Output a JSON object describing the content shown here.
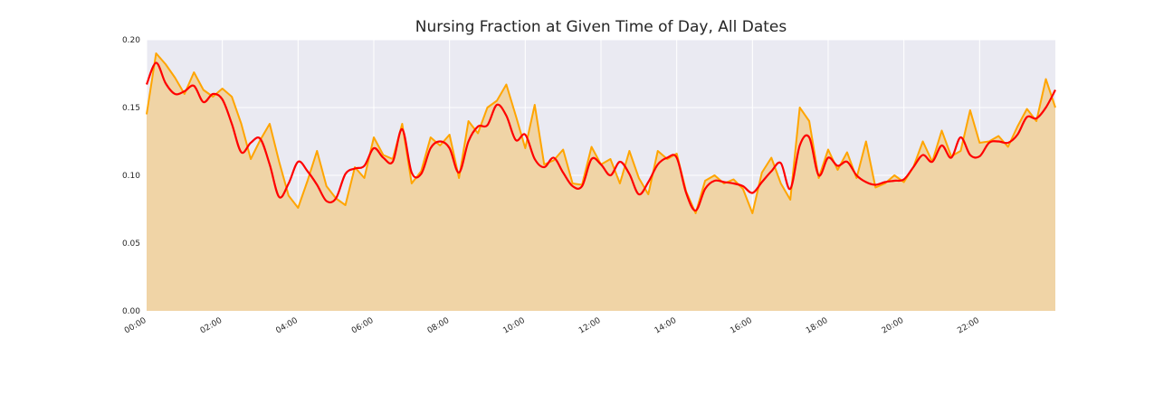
{
  "chart_data": {
    "type": "area",
    "title": "Nursing Fraction at Given Time of Day, All Dates",
    "xlabel": "",
    "ylabel": "",
    "xlim": [
      0,
      24
    ],
    "ylim": [
      0,
      0.2
    ],
    "x_ticks": [
      "00:00",
      "02:00",
      "04:00",
      "06:00",
      "08:00",
      "10:00",
      "12:00",
      "14:00",
      "16:00",
      "18:00",
      "20:00",
      "22:00"
    ],
    "y_ticks": [
      "0.00",
      "0.05",
      "0.10",
      "0.15",
      "0.20"
    ],
    "grid": true,
    "legend": "none",
    "colors": {
      "background": "#EAEAF2",
      "grid": "#FFFFFF",
      "raw_line": "#FFA500",
      "fill": "#F0D4A6",
      "smooth_line": "#FF0000"
    },
    "series": [
      {
        "role": "raw",
        "x": [
          0,
          0.25,
          0.5,
          0.75,
          1.0,
          1.25,
          1.5,
          1.75,
          2.0,
          2.25,
          2.5,
          2.75,
          3.0,
          3.25,
          3.5,
          3.75,
          4.0,
          4.25,
          4.5,
          4.75,
          5.0,
          5.25,
          5.5,
          5.75,
          6.0,
          6.25,
          6.5,
          6.75,
          7.0,
          7.25,
          7.5,
          7.75,
          8.0,
          8.25,
          8.5,
          8.75,
          9.0,
          9.25,
          9.5,
          9.75,
          10.0,
          10.25,
          10.5,
          10.75,
          11.0,
          11.25,
          11.5,
          11.75,
          12.0,
          12.25,
          12.5,
          12.75,
          13.0,
          13.25,
          13.5,
          13.75,
          14.0,
          14.25,
          14.5,
          14.75,
          15.0,
          15.25,
          15.5,
          15.75,
          16.0,
          16.25,
          16.5,
          16.75,
          17.0,
          17.25,
          17.5,
          17.75,
          18.0,
          18.25,
          18.5,
          18.75,
          19.0,
          19.25,
          19.5,
          19.75,
          20.0,
          20.25,
          20.5,
          20.75,
          21.0,
          21.25,
          21.5,
          21.75,
          22.0,
          22.25,
          22.5,
          22.75,
          23.0,
          23.25,
          23.5,
          23.75,
          24.0
        ],
        "y": [
          0.145,
          0.19,
          0.182,
          0.172,
          0.16,
          0.176,
          0.163,
          0.158,
          0.164,
          0.158,
          0.138,
          0.112,
          0.126,
          0.138,
          0.11,
          0.085,
          0.076,
          0.096,
          0.118,
          0.092,
          0.083,
          0.078,
          0.106,
          0.098,
          0.128,
          0.115,
          0.112,
          0.138,
          0.094,
          0.103,
          0.128,
          0.122,
          0.13,
          0.098,
          0.14,
          0.131,
          0.15,
          0.155,
          0.167,
          0.144,
          0.12,
          0.152,
          0.108,
          0.111,
          0.119,
          0.094,
          0.093,
          0.121,
          0.108,
          0.112,
          0.094,
          0.118,
          0.098,
          0.086,
          0.118,
          0.112,
          0.116,
          0.088,
          0.072,
          0.096,
          0.1,
          0.094,
          0.097,
          0.09,
          0.072,
          0.102,
          0.113,
          0.094,
          0.082,
          0.15,
          0.14,
          0.098,
          0.119,
          0.104,
          0.117,
          0.098,
          0.125,
          0.091,
          0.094,
          0.1,
          0.095,
          0.106,
          0.125,
          0.11,
          0.133,
          0.114,
          0.118,
          0.148,
          0.124,
          0.125,
          0.129,
          0.121,
          0.136,
          0.149,
          0.14,
          0.171,
          0.15
        ]
      },
      {
        "role": "smoothed",
        "x": [
          0,
          0.25,
          0.5,
          0.75,
          1.0,
          1.25,
          1.5,
          1.75,
          2.0,
          2.25,
          2.5,
          2.75,
          3.0,
          3.25,
          3.5,
          3.75,
          4.0,
          4.25,
          4.5,
          4.75,
          5.0,
          5.25,
          5.5,
          5.75,
          6.0,
          6.25,
          6.5,
          6.75,
          7.0,
          7.25,
          7.5,
          7.75,
          8.0,
          8.25,
          8.5,
          8.75,
          9.0,
          9.25,
          9.5,
          9.75,
          10.0,
          10.25,
          10.5,
          10.75,
          11.0,
          11.25,
          11.5,
          11.75,
          12.0,
          12.25,
          12.5,
          12.75,
          13.0,
          13.25,
          13.5,
          13.75,
          14.0,
          14.25,
          14.5,
          14.75,
          15.0,
          15.25,
          15.5,
          15.75,
          16.0,
          16.25,
          16.5,
          16.75,
          17.0,
          17.25,
          17.5,
          17.75,
          18.0,
          18.25,
          18.5,
          18.75,
          19.0,
          19.25,
          19.5,
          19.75,
          20.0,
          20.25,
          20.5,
          20.75,
          21.0,
          21.25,
          21.5,
          21.75,
          22.0,
          22.25,
          22.5,
          22.75,
          23.0,
          23.25,
          23.5,
          23.75,
          24.0
        ],
        "y": [
          0.167,
          0.183,
          0.168,
          0.16,
          0.162,
          0.166,
          0.154,
          0.16,
          0.156,
          0.138,
          0.117,
          0.124,
          0.127,
          0.108,
          0.084,
          0.094,
          0.11,
          0.103,
          0.093,
          0.081,
          0.083,
          0.101,
          0.105,
          0.107,
          0.12,
          0.113,
          0.11,
          0.134,
          0.102,
          0.101,
          0.12,
          0.125,
          0.12,
          0.102,
          0.125,
          0.136,
          0.137,
          0.152,
          0.144,
          0.126,
          0.13,
          0.112,
          0.106,
          0.113,
          0.102,
          0.092,
          0.092,
          0.112,
          0.108,
          0.1,
          0.11,
          0.101,
          0.086,
          0.095,
          0.108,
          0.113,
          0.113,
          0.087,
          0.074,
          0.09,
          0.096,
          0.095,
          0.094,
          0.092,
          0.087,
          0.095,
          0.103,
          0.109,
          0.09,
          0.122,
          0.128,
          0.1,
          0.113,
          0.107,
          0.11,
          0.1,
          0.095,
          0.093,
          0.095,
          0.096,
          0.097,
          0.106,
          0.115,
          0.11,
          0.122,
          0.113,
          0.128,
          0.115,
          0.114,
          0.124,
          0.125,
          0.124,
          0.13,
          0.143,
          0.142,
          0.15,
          0.163
        ]
      }
    ]
  }
}
